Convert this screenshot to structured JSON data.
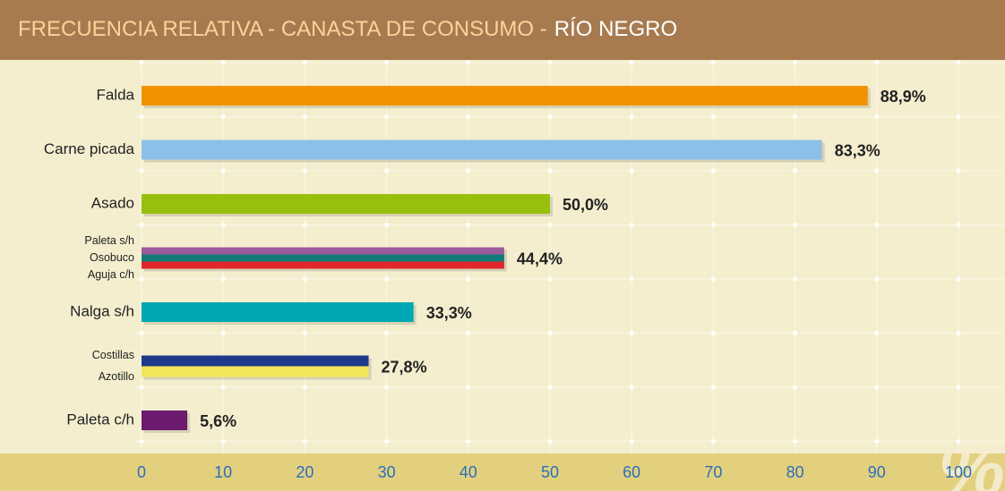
{
  "chart_data": {
    "type": "grouped-hbar",
    "title": "FRECUENCIA RELATIVA - CANASTA DE CONSUMO -",
    "region": "RÍO NEGRO",
    "unit": "%",
    "groups": [
      {
        "items": [
          {
            "name": "Falda",
            "color": "#f39200"
          }
        ],
        "value": 88.9,
        "value_label": "88,9%"
      },
      {
        "items": [
          {
            "name": "Carne picada",
            "color": "#8cc0e8"
          }
        ],
        "value": 83.3,
        "value_label": "83,3%"
      },
      {
        "items": [
          {
            "name": "Asado",
            "color": "#97bf0d"
          }
        ],
        "value": 50.0,
        "value_label": "50,0%"
      },
      {
        "items": [
          {
            "name": "Paleta s/h",
            "color": "#9b5a9a"
          },
          {
            "name": "Osobuco",
            "color": "#127b78"
          },
          {
            "name": "Aguja c/h",
            "color": "#e3262b"
          }
        ],
        "value": 44.4,
        "value_label": "44,4%"
      },
      {
        "items": [
          {
            "name": "Nalga s/h",
            "color": "#00a8b5"
          }
        ],
        "value": 33.3,
        "value_label": "33,3%"
      },
      {
        "items": [
          {
            "name": "Costillas",
            "color": "#1d3a8a"
          },
          {
            "name": "Azotillo",
            "color": "#f1e65a"
          }
        ],
        "value": 27.8,
        "value_label": "27,8%"
      },
      {
        "items": [
          {
            "name": "Paleta c/h",
            "color": "#6b1a6e"
          }
        ],
        "value": 5.6,
        "value_label": "5,6%"
      }
    ],
    "xlim": [
      0,
      100
    ],
    "xticks": [
      0,
      10,
      20,
      30,
      40,
      50,
      60,
      70,
      80,
      90,
      100
    ],
    "grid": true
  }
}
